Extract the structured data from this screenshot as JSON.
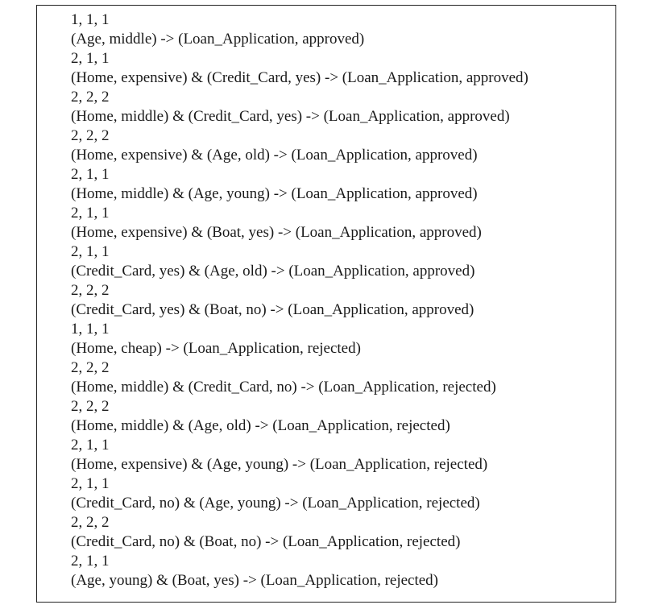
{
  "rules": [
    {
      "counts": "1, 1, 1",
      "rule": "(Age, middle) -> (Loan_Application, approved)"
    },
    {
      "counts": "2, 1, 1",
      "rule": "(Home, expensive) & (Credit_Card, yes) -> (Loan_Application, approved)"
    },
    {
      "counts": "2, 2, 2",
      "rule": "(Home, middle) & (Credit_Card, yes) -> (Loan_Application, approved)"
    },
    {
      "counts": "2, 2, 2",
      "rule": "(Home, expensive) & (Age, old) -> (Loan_Application, approved)"
    },
    {
      "counts": "2, 1, 1",
      "rule": "(Home, middle) & (Age, young) -> (Loan_Application, approved)"
    },
    {
      "counts": "2, 1, 1",
      "rule": "(Home, expensive) & (Boat, yes) -> (Loan_Application, approved)"
    },
    {
      "counts": "2, 1, 1",
      "rule": "(Credit_Card, yes) & (Age, old) -> (Loan_Application, approved)"
    },
    {
      "counts": "2, 2, 2",
      "rule": "(Credit_Card, yes) & (Boat, no) -> (Loan_Application, approved)"
    },
    {
      "counts": "1, 1, 1",
      "rule": "(Home, cheap) -> (Loan_Application, rejected)"
    },
    {
      "counts": "2, 2, 2",
      "rule": "(Home, middle) & (Credit_Card, no) -> (Loan_Application, rejected)"
    },
    {
      "counts": "2, 2, 2",
      "rule": "(Home, middle) & (Age, old) -> (Loan_Application, rejected)"
    },
    {
      "counts": "2, 1, 1",
      "rule": "(Home, expensive) & (Age, young) -> (Loan_Application, rejected)"
    },
    {
      "counts": "2, 1, 1",
      "rule": "(Credit_Card, no) & (Age, young) -> (Loan_Application, rejected)"
    },
    {
      "counts": "2, 2, 2",
      "rule": "(Credit_Card, no) & (Boat, no) -> (Loan_Application, rejected)"
    },
    {
      "counts": "2, 1, 1",
      "rule": "(Age, young) & (Boat, yes) -> (Loan_Application, rejected)"
    }
  ]
}
